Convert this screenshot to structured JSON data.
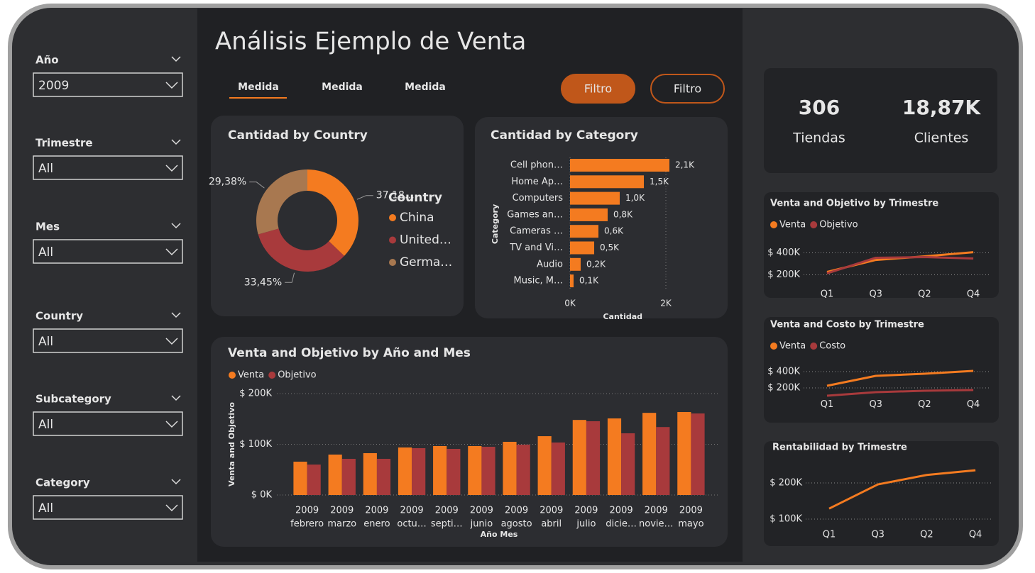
{
  "title": "Análisis Ejemplo de Venta",
  "slicers": [
    {
      "label": "Año",
      "value": "2009"
    },
    {
      "label": "Trimestre",
      "value": "All"
    },
    {
      "label": "Mes",
      "value": "All"
    },
    {
      "label": "Country",
      "value": "All"
    },
    {
      "label": "Subcategory",
      "value": "All"
    },
    {
      "label": "Category",
      "value": "All"
    }
  ],
  "tabs": [
    "Medida",
    "Medida",
    "Medida"
  ],
  "buttons": [
    "Filtro",
    "Filtro"
  ],
  "kpis": [
    {
      "value": "306",
      "label": "Tiendas"
    },
    {
      "value": "18,87K",
      "label": "Clientes"
    }
  ],
  "chart_data": [
    {
      "type": "pie",
      "title": "Cantidad by Country",
      "legend_title": "Country",
      "donut": true,
      "categories": [
        "China",
        "United…",
        "Germa…"
      ],
      "values": [
        37.18,
        33.45,
        29.38
      ],
      "value_labels": [
        "37,18…",
        "33,45%",
        "29,38%"
      ],
      "colors": [
        "#f47b20",
        "#a83a3c",
        "#a87850"
      ]
    },
    {
      "type": "bar",
      "orientation": "horizontal",
      "title": "Cantidad by Category",
      "xlabel": "Cantidad",
      "ylabel": "Category",
      "categories": [
        "Cell phon…",
        "Home Ap…",
        "Computers",
        "Games an…",
        "Cameras …",
        "TV and Vi…",
        "Audio",
        "Music, M…"
      ],
      "values": [
        2074,
        1541,
        1037,
        785,
        593,
        504,
        222,
        74
      ],
      "value_labels": [
        "2,1K",
        "1,5K",
        "1,0K",
        "0,8K",
        "0,6K",
        "0,5K",
        "0,2K",
        "0,1K"
      ],
      "color": "#f47b20",
      "xlim": [
        0,
        2200
      ],
      "xticks": [
        {
          "value": 0,
          "label": "0K"
        },
        {
          "value": 2000,
          "label": "2K"
        }
      ],
      "grid": true
    },
    {
      "type": "bar",
      "title": "Venta and Objetivo by Año and Mes",
      "xlabel": "Año Mes",
      "ylabel": "Venta and Objetivo",
      "categories": [
        [
          "2009",
          "febrero"
        ],
        [
          "2009",
          "marzo"
        ],
        [
          "2009",
          "enero"
        ],
        [
          "2009",
          "octu…"
        ],
        [
          "2009",
          "septi…"
        ],
        [
          "2009",
          "junio"
        ],
        [
          "2009",
          "agosto"
        ],
        [
          "2009",
          "abril"
        ],
        [
          "2009",
          "julio"
        ],
        [
          "2009",
          "dicie…"
        ],
        [
          "2009",
          "novie…"
        ],
        [
          "2009",
          "mayo"
        ]
      ],
      "series": [
        {
          "name": "Venta",
          "color": "#f47b20",
          "values": [
            65700,
            79700,
            82500,
            93700,
            96500,
            96500,
            104900,
            116000,
            148000,
            151000,
            162000,
            163600
          ]
        },
        {
          "name": "Objetivo",
          "color": "#a83a3c",
          "values": [
            60000,
            71300,
            71300,
            92300,
            90900,
            95100,
            99300,
            103500,
            145500,
            121700,
            134000,
            160800
          ]
        }
      ],
      "ylim": [
        0,
        200000
      ],
      "yticks": [
        {
          "value": 0,
          "label": "$ 0K"
        },
        {
          "value": 100000,
          "label": "$ 100K"
        },
        {
          "value": 200000,
          "label": "$ 200K"
        }
      ],
      "grid": true
    },
    {
      "type": "line",
      "title": "Venta and Objetivo by Trimestre",
      "categories": [
        "Q1",
        "Q3",
        "Q2",
        "Q4"
      ],
      "series": [
        {
          "name": "Venta",
          "color": "#f47b20",
          "values": [
            226000,
            335000,
            368000,
            406000
          ]
        },
        {
          "name": "Objetivo",
          "color": "#a83a3c",
          "values": [
            213000,
            355000,
            361000,
            348000
          ]
        }
      ],
      "ylim": [
        100000,
        500000
      ],
      "yticks": [
        {
          "value": 200000,
          "label": "$ 200K"
        },
        {
          "value": 400000,
          "label": "$ 400K"
        }
      ],
      "grid": true
    },
    {
      "type": "line",
      "title": "Venta and Costo by Trimestre",
      "categories": [
        "Q1",
        "Q3",
        "Q2",
        "Q4"
      ],
      "series": [
        {
          "name": "Venta",
          "color": "#f47b20",
          "values": [
            226000,
            348000,
            374000,
            409000
          ]
        },
        {
          "name": "Costo",
          "color": "#a83a3c",
          "values": [
            104000,
            148000,
            165000,
            174000
          ]
        }
      ],
      "ylim": [
        100000,
        450000
      ],
      "yticks": [
        {
          "value": 200000,
          "label": "$ 200K"
        },
        {
          "value": 400000,
          "label": "$ 400K"
        }
      ],
      "grid": true
    },
    {
      "type": "line",
      "title": "Rentabilidad by Trimestre",
      "categories": [
        "Q1",
        "Q3",
        "Q2",
        "Q4"
      ],
      "values": [
        129000,
        196000,
        222000,
        235000
      ],
      "color": "#f47b20",
      "ylim": [
        80000,
        250000
      ],
      "yticks": [
        {
          "value": 100000,
          "label": "$ 100K"
        },
        {
          "value": 200000,
          "label": "$ 200K"
        }
      ],
      "grid": true
    }
  ]
}
